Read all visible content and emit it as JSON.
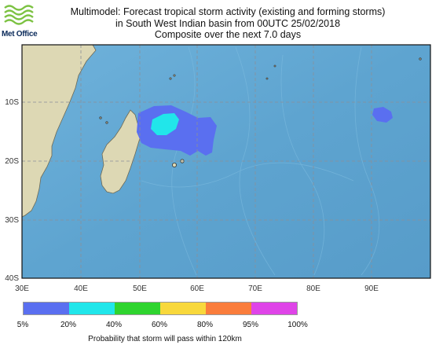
{
  "header": {
    "brand": "Met Office",
    "title_lines": [
      "Multimodel: Forecast tropical storm activity (existing and forming storms)",
      "in South West Indian basin from 00UTC 25/02/2018",
      "Composite over the next 7.0 days"
    ]
  },
  "map": {
    "lat_labels": [
      "10S",
      "20S",
      "30S",
      "40S"
    ],
    "lon_labels": [
      "30E",
      "40E",
      "50E",
      "60E",
      "70E",
      "80E",
      "90E"
    ],
    "colors": {
      "ocean": "#5ea4d0",
      "land": "#ddd8b4",
      "grid": "#8a8f98"
    }
  },
  "legend": {
    "ticks": [
      "5%",
      "20%",
      "40%",
      "60%",
      "80%",
      "95%",
      "100%"
    ],
    "colors": [
      "#5a6ff0",
      "#21e6ea",
      "#2fd42f",
      "#f8d83c",
      "#fa7d3c",
      "#df44e8"
    ],
    "caption": "Probability that storm will pass within 120km"
  }
}
